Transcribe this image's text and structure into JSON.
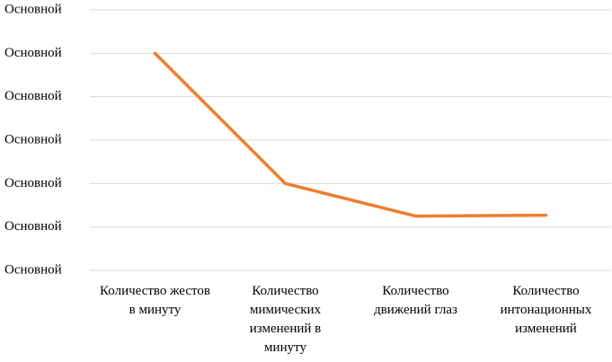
{
  "chart_data": {
    "type": "line",
    "categories": [
      "Количество жестов в минуту",
      "Количество мимических изменений в минуту",
      "Количество движений глаз",
      "Количество интонационных изменений"
    ],
    "series": [
      {
        "color": "#ed7d31",
        "values": [
          5,
          2,
          1.25,
          1.27
        ]
      }
    ],
    "ylim": [
      0,
      6
    ],
    "yticks": [
      {
        "value": 0,
        "label": "Основной"
      },
      {
        "value": 1,
        "label": "Основной"
      },
      {
        "value": 2,
        "label": "Основной"
      },
      {
        "value": 3,
        "label": "Основной"
      },
      {
        "value": 4,
        "label": "Основной"
      },
      {
        "value": 5,
        "label": "Основной"
      },
      {
        "value": 6,
        "label": "Основной"
      }
    ],
    "grid": true
  }
}
